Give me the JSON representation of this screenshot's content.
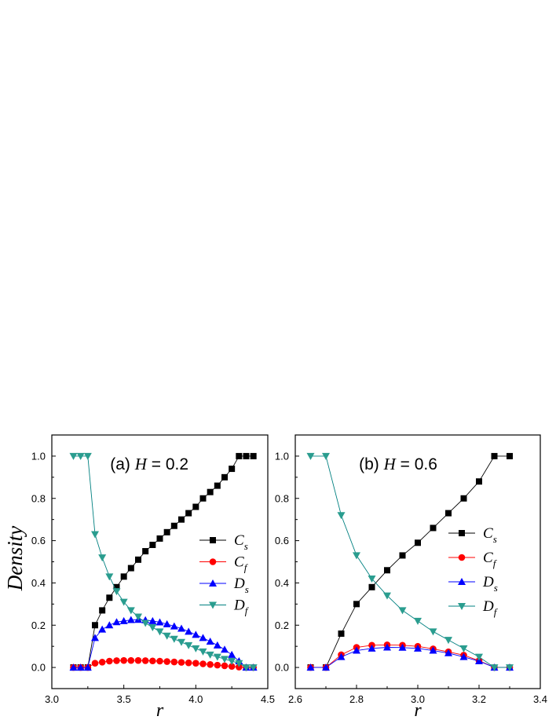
{
  "y_label": "Density",
  "colors": {
    "Cs": "#000000",
    "Cf": "#ff0000",
    "Ds": "#0000ff",
    "Df": "#008080",
    "Df_marker": "#2a9d8f"
  },
  "chart_data": [
    {
      "type": "line",
      "title": {
        "prefix": "(a) ",
        "var": "H",
        "suffix": " = 0.2"
      },
      "xlabel": "r",
      "ylabel": "Density",
      "xlim": [
        3.0,
        4.5
      ],
      "ylim": [
        -0.1,
        1.1
      ],
      "xticks": [
        "3.0",
        "3.5",
        "4.0",
        "4.5"
      ],
      "yticks": [
        "0.0",
        "0.2",
        "0.4",
        "0.6",
        "0.8",
        "1.0"
      ],
      "legend_position": "right",
      "x": [
        3.15,
        3.2,
        3.25,
        3.3,
        3.35,
        3.4,
        3.45,
        3.5,
        3.55,
        3.6,
        3.65,
        3.7,
        3.75,
        3.8,
        3.85,
        3.9,
        3.95,
        4.0,
        4.05,
        4.1,
        4.15,
        4.2,
        4.25,
        4.3,
        4.35,
        4.4
      ],
      "series": [
        {
          "name": "C",
          "sub": "s",
          "key": "Cs",
          "marker": "square",
          "values": [
            0,
            0,
            0,
            0.2,
            0.27,
            0.33,
            0.38,
            0.43,
            0.47,
            0.51,
            0.55,
            0.58,
            0.61,
            0.64,
            0.67,
            0.7,
            0.73,
            0.76,
            0.8,
            0.83,
            0.86,
            0.9,
            0.94,
            1.0,
            1.0,
            1.0
          ]
        },
        {
          "name": "C",
          "sub": "f",
          "key": "Cf",
          "marker": "circle",
          "values": [
            0,
            0,
            0,
            0.02,
            0.025,
            0.03,
            0.032,
            0.033,
            0.033,
            0.033,
            0.032,
            0.031,
            0.03,
            0.028,
            0.026,
            0.024,
            0.022,
            0.02,
            0.017,
            0.014,
            0.011,
            0.008,
            0.005,
            0.002,
            0,
            0
          ]
        },
        {
          "name": "D",
          "sub": "s",
          "key": "Ds",
          "marker": "triangle-up",
          "values": [
            0,
            0,
            0,
            0.14,
            0.18,
            0.2,
            0.215,
            0.22,
            0.225,
            0.226,
            0.224,
            0.22,
            0.214,
            0.205,
            0.195,
            0.184,
            0.17,
            0.155,
            0.14,
            0.123,
            0.105,
            0.085,
            0.06,
            0.03,
            0,
            0
          ]
        },
        {
          "name": "D",
          "sub": "f",
          "key": "Df",
          "marker": "triangle-down",
          "values": [
            1.0,
            1.0,
            1.0,
            0.63,
            0.52,
            0.43,
            0.36,
            0.31,
            0.27,
            0.24,
            0.21,
            0.19,
            0.17,
            0.15,
            0.135,
            0.12,
            0.105,
            0.09,
            0.075,
            0.06,
            0.05,
            0.04,
            0.03,
            0.02,
            0,
            0
          ]
        }
      ]
    },
    {
      "type": "line",
      "title": {
        "prefix": "(b) ",
        "var": "H",
        "suffix": " = 0.6"
      },
      "xlabel": "r",
      "ylabel": "",
      "xlim": [
        2.6,
        3.4
      ],
      "ylim": [
        -0.1,
        1.1
      ],
      "xticks": [
        "2.6",
        "2.8",
        "3.0",
        "3.2",
        "3.4"
      ],
      "yticks": [
        "0.0",
        "0.2",
        "0.4",
        "0.6",
        "0.8",
        "1.0"
      ],
      "legend_position": "right",
      "x": [
        2.65,
        2.7,
        2.75,
        2.8,
        2.85,
        2.9,
        2.95,
        3.0,
        3.05,
        3.1,
        3.15,
        3.2,
        3.25,
        3.3
      ],
      "series": [
        {
          "name": "C",
          "sub": "s",
          "key": "Cs",
          "marker": "square",
          "values": [
            0,
            0,
            0.16,
            0.3,
            0.38,
            0.46,
            0.53,
            0.59,
            0.66,
            0.73,
            0.8,
            0.88,
            1.0,
            1.0
          ]
        },
        {
          "name": "C",
          "sub": "f",
          "key": "Cf",
          "marker": "circle",
          "values": [
            0,
            0,
            0.06,
            0.095,
            0.105,
            0.107,
            0.105,
            0.1,
            0.088,
            0.074,
            0.058,
            0.032,
            0,
            0
          ]
        },
        {
          "name": "D",
          "sub": "s",
          "key": "Ds",
          "marker": "triangle-up",
          "values": [
            0,
            0,
            0.05,
            0.08,
            0.09,
            0.095,
            0.094,
            0.09,
            0.08,
            0.068,
            0.05,
            0.03,
            0,
            0
          ]
        },
        {
          "name": "D",
          "sub": "f",
          "key": "Df",
          "marker": "triangle-down",
          "values": [
            1.0,
            1.0,
            0.72,
            0.53,
            0.42,
            0.34,
            0.27,
            0.22,
            0.17,
            0.13,
            0.09,
            0.05,
            0,
            0
          ]
        }
      ]
    }
  ]
}
